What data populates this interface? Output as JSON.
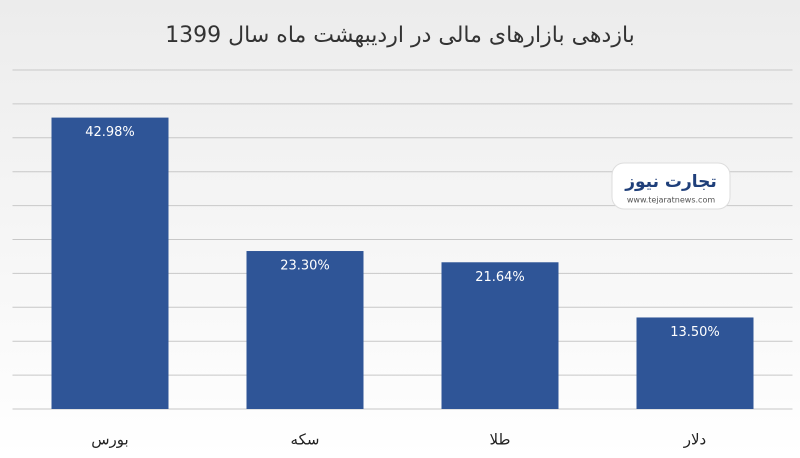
{
  "chart_data": {
    "type": "bar",
    "title": "بازدهی بازارهای مالی در اردیبهشت ماه سال 1399",
    "categories": [
      "بورس",
      "سکه",
      "طلا",
      "دلار"
    ],
    "values": [
      42.98,
      23.3,
      21.64,
      13.5
    ],
    "value_labels": [
      "42.98%",
      "23.30%",
      "21.64%",
      "13.50%"
    ],
    "color": "#2f5597",
    "ylim": [
      0,
      50
    ],
    "yticks": [
      0,
      5,
      10,
      15,
      20,
      25,
      30,
      35,
      40,
      45,
      50
    ],
    "grid": true
  },
  "logo": {
    "name": "تجارت نیوز",
    "url": "www.tejaratnews.com"
  }
}
